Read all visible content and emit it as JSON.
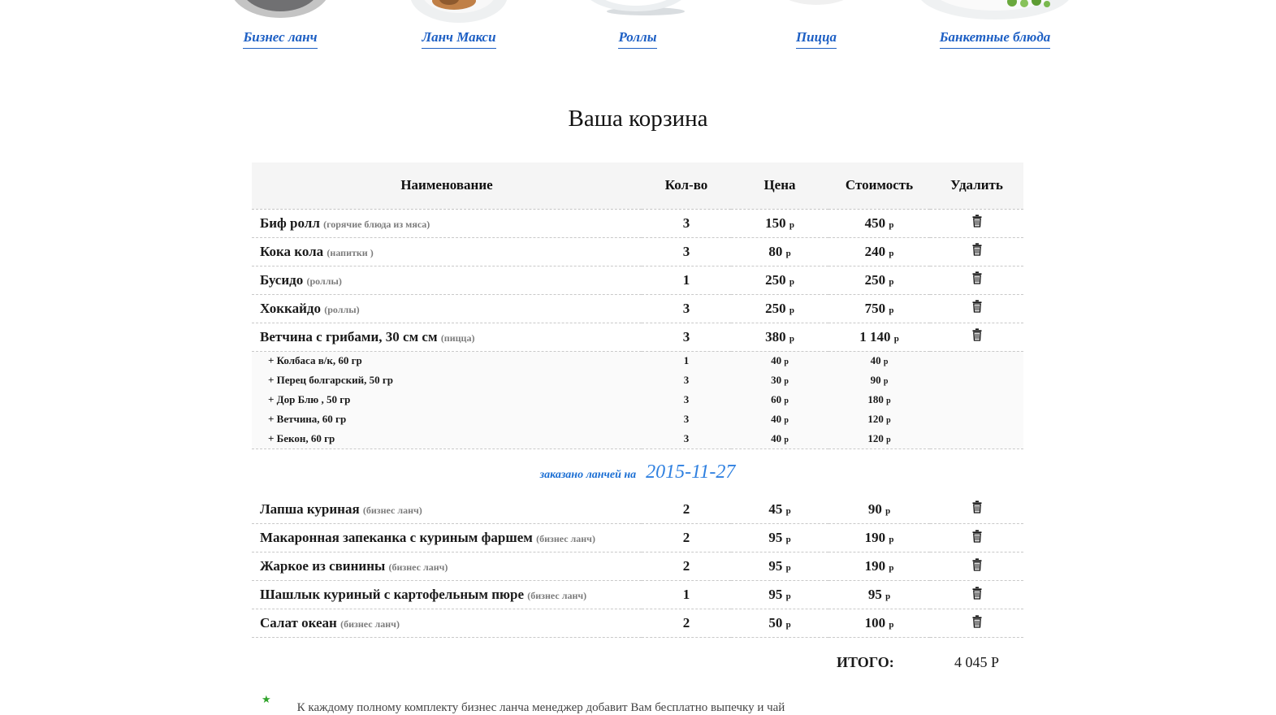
{
  "nav": {
    "items": [
      {
        "label": "Бизнес ланч",
        "image": "dark-plate"
      },
      {
        "label": "Ланч Макси",
        "image": "plate-with-fish"
      },
      {
        "label": "Роллы",
        "image": "white-bowl"
      },
      {
        "label": "Пицца",
        "image": "white-plate-sliver"
      },
      {
        "label": "Банкетные блюда",
        "image": "plate-with-greens"
      }
    ]
  },
  "cart": {
    "title": "Ваша корзина",
    "columns": {
      "name": "Наименование",
      "qty": "Кол-во",
      "price": "Цена",
      "cost": "Стоимость",
      "delete": "Удалить"
    },
    "currency": "р",
    "items": [
      {
        "name": "Биф ролл",
        "category": "(горячие блюда из мяса)",
        "qty": "3",
        "price": "150",
        "cost": "450"
      },
      {
        "name": "Кока кола",
        "category": "(напитки )",
        "qty": "3",
        "price": "80",
        "cost": "240"
      },
      {
        "name": "Бусидо",
        "category": "(роллы)",
        "qty": "1",
        "price": "250",
        "cost": "250"
      },
      {
        "name": "Хоккайдо",
        "category": "(роллы)",
        "qty": "3",
        "price": "250",
        "cost": "750"
      },
      {
        "name": "Ветчина с грибами, 30 см см",
        "category": "(пицца)",
        "qty": "3",
        "price": "380",
        "cost": "1 140"
      }
    ],
    "toppings": [
      {
        "name": "+ Колбаса в/к, 60 гр",
        "qty": "1",
        "price": "40",
        "cost": "40"
      },
      {
        "name": "+ Перец болгарский, 50 гр",
        "qty": "3",
        "price": "30",
        "cost": "90"
      },
      {
        "name": "+ Дор Блю , 50 гр",
        "qty": "3",
        "price": "60",
        "cost": "180"
      },
      {
        "name": "+ Ветчина, 60 гр",
        "qty": "3",
        "price": "40",
        "cost": "120"
      },
      {
        "name": "+ Бекон, 60 гр",
        "qty": "3",
        "price": "40",
        "cost": "120"
      }
    ],
    "lunch_note": {
      "prefix": "заказано ланчей на",
      "date": "2015-11-27"
    },
    "lunch_items": [
      {
        "name": "Лапша куриная",
        "category": "(бизнес ланч)",
        "qty": "2",
        "price": "45",
        "cost": "90"
      },
      {
        "name": "Макаронная запеканка с куриным фаршем",
        "category": "(бизнес ланч)",
        "qty": "2",
        "price": "95",
        "cost": "190"
      },
      {
        "name": "Жаркое из свинины",
        "category": "(бизнес ланч)",
        "qty": "2",
        "price": "95",
        "cost": "190"
      },
      {
        "name": "Шашлык куриный с картофельным пюре",
        "category": "(бизнес ланч)",
        "qty": "1",
        "price": "95",
        "cost": "95"
      },
      {
        "name": "Салат океан",
        "category": "(бизнес ланч)",
        "qty": "2",
        "price": "50",
        "cost": "100"
      }
    ],
    "total": {
      "label": "ИТОГО:",
      "value": "4 045 Р"
    },
    "footnote": {
      "star": "★",
      "text": "К каждому полному комплекту бизнес ланча менеджер добавит Вам бесплатно выпечку и чай"
    }
  },
  "icons": {
    "delete": "trash-icon",
    "footnote": "star-icon"
  },
  "colors": {
    "link_blue": "#1d5fc4",
    "note_blue": "#2f80e0",
    "star_green": "#2fa32a",
    "header_bg": "#f5f5f5",
    "toppings_bg": "#fafafa"
  }
}
